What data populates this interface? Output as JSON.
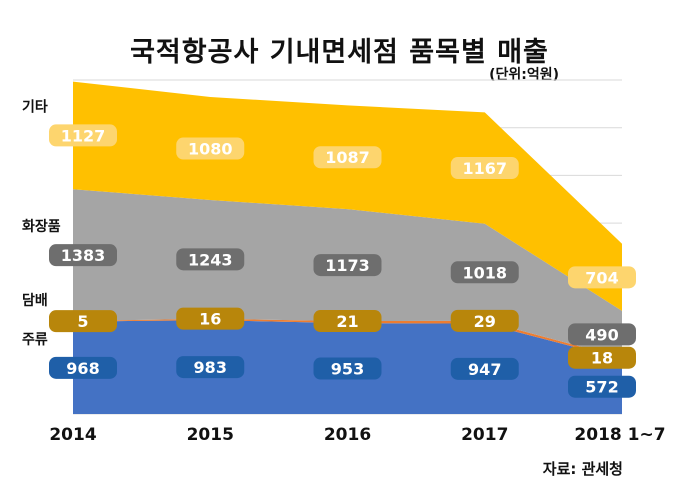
{
  "title": "국적항공사 기내면세점 품목별 매출",
  "unit": "(단위:억원)",
  "source": "자료: 관세청",
  "chart_data": {
    "type": "area",
    "stacked": true,
    "categories": [
      "2014",
      "2015",
      "2016",
      "2017",
      "2018 1~7"
    ],
    "series": [
      {
        "name": "주류",
        "values": [
          968,
          983,
          953,
          947,
          572
        ],
        "color": "#4472c4",
        "label_color": "#1f5fa8"
      },
      {
        "name": "담배",
        "values": [
          5,
          16,
          21,
          29,
          18
        ],
        "color": "#ed7d31",
        "label_color": "#b8860b"
      },
      {
        "name": "화장품",
        "values": [
          1383,
          1243,
          1173,
          1018,
          490
        ],
        "color": "#a5a5a5",
        "label_color": "#6e6e6e"
      },
      {
        "name": "기타",
        "values": [
          1127,
          1080,
          1087,
          1167,
          704
        ],
        "color": "#ffc000",
        "label_color": "#fdd56e"
      }
    ],
    "ylim": [
      0,
      3500
    ],
    "grid": true,
    "legend": "left"
  }
}
